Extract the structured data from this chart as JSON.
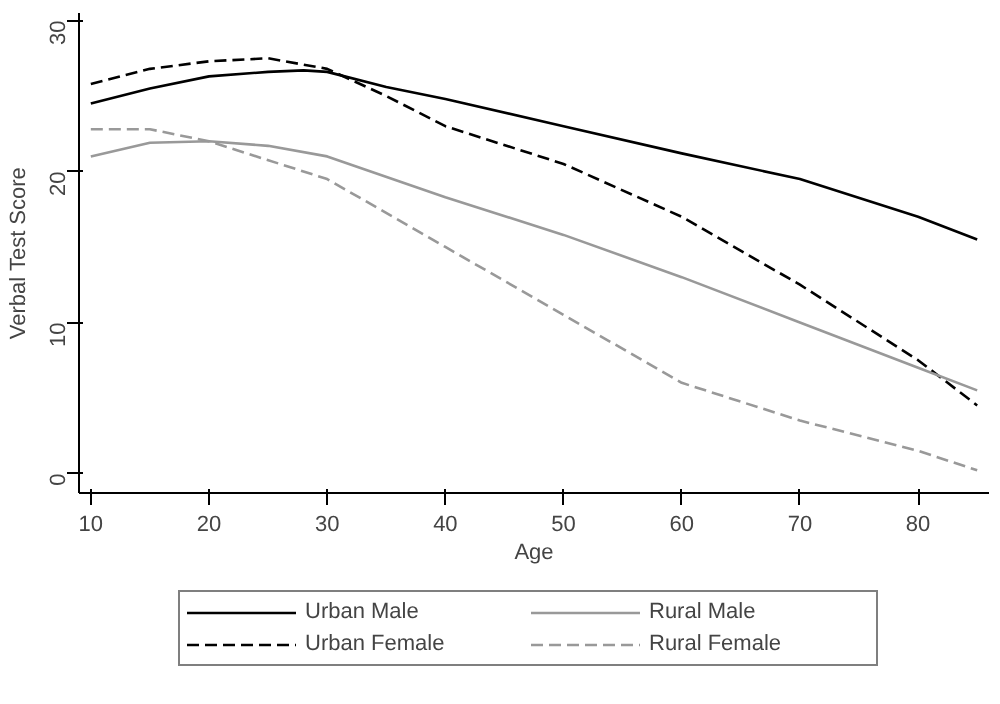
{
  "chart_data": {
    "type": "line",
    "xlabel": "Age",
    "ylabel": "Verbal Test Score",
    "xlim": [
      9,
      86
    ],
    "ylim": [
      -1.3,
      30.5
    ],
    "xticks": [
      10,
      20,
      30,
      40,
      50,
      60,
      70,
      80
    ],
    "yticks": [
      0,
      10,
      20,
      30
    ],
    "legend": "bottom",
    "grid": false,
    "series": [
      {
        "name": "Urban Male",
        "color": "#000000",
        "line_style": "solid",
        "x": [
          10,
          15,
          20,
          25,
          28,
          30,
          35,
          40,
          50,
          60,
          70,
          80,
          85
        ],
        "values": [
          24.5,
          25.5,
          26.3,
          26.6,
          26.7,
          26.6,
          25.6,
          24.8,
          23,
          21.2,
          19.5,
          17,
          15.5
        ]
      },
      {
        "name": "Urban Female",
        "color": "#000000",
        "line_style": "dashed",
        "x": [
          10,
          15,
          20,
          25,
          30,
          35,
          40,
          50,
          60,
          70,
          80,
          85
        ],
        "values": [
          25.8,
          26.8,
          27.3,
          27.5,
          26.8,
          25,
          23,
          20.5,
          17,
          12.5,
          7.5,
          4.5
        ]
      },
      {
        "name": "Rural Male",
        "color": "#999999",
        "line_style": "solid",
        "x": [
          10,
          15,
          20,
          25,
          30,
          40,
          50,
          60,
          70,
          80,
          85
        ],
        "values": [
          21,
          21.9,
          22,
          21.7,
          21,
          18.3,
          15.8,
          13,
          10,
          7,
          5.5
        ]
      },
      {
        "name": "Rural Female",
        "color": "#999999",
        "line_style": "dashed",
        "x": [
          10,
          15,
          20,
          30,
          40,
          50,
          60,
          70,
          80,
          85
        ],
        "values": [
          22.8,
          22.8,
          22,
          19.5,
          15,
          10.5,
          6,
          3.5,
          1.5,
          0.2
        ]
      }
    ]
  }
}
